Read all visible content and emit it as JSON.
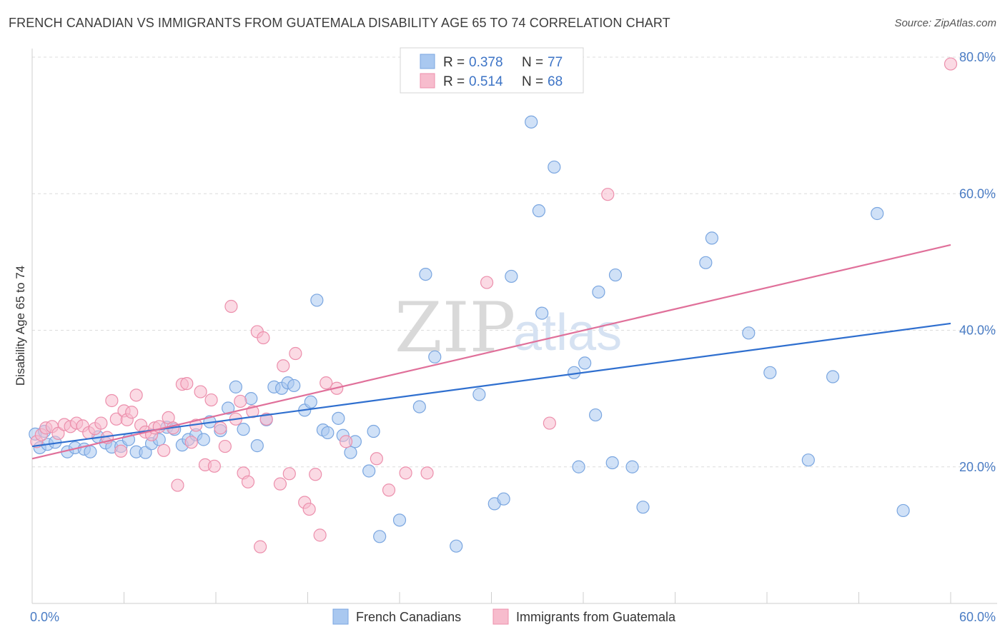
{
  "header": {
    "title": "FRENCH CANADIAN VS IMMIGRANTS FROM GUATEMALA DISABILITY AGE 65 TO 74 CORRELATION CHART",
    "source": "Source: ZipAtlas.com"
  },
  "watermark": {
    "zip": "ZIP",
    "atlas": "atlas"
  },
  "legend": {
    "r_label": "R =",
    "n_label": "N =",
    "rows": [
      {
        "r": "0.378",
        "n": "77",
        "color": "#a9c8f0"
      },
      {
        "r": "0.514",
        "n": "68",
        "color": "#f7bccd"
      }
    ]
  },
  "bottom_legend": [
    "French Canadians",
    "Immigrants from Guatemala"
  ],
  "chart_data": {
    "type": "scatter",
    "title": "FRENCH CANADIAN VS IMMIGRANTS FROM GUATEMALA DISABILITY AGE 65 TO 74 CORRELATION CHART",
    "xlabel": "",
    "ylabel": "Disability Age 65 to 74",
    "xlim": [
      0,
      60
    ],
    "ylim": [
      0,
      80
    ],
    "x_tick_labels": [
      "0.0%",
      "60.0%"
    ],
    "y_tick_labels": [
      "20.0%",
      "40.0%",
      "60.0%",
      "80.0%"
    ],
    "y_ticks": [
      20,
      40,
      60,
      80
    ],
    "grid": "horizontal dashed",
    "legend_position": "top-center",
    "series": [
      {
        "name": "French Canadians",
        "color": "#a9c8f0",
        "edge": "#7aa6e0",
        "line_color": "#2f6fcf",
        "trend": [
          [
            0,
            23.0
          ],
          [
            60,
            41.0
          ]
        ],
        "points": [
          [
            0.2,
            24.8
          ],
          [
            0.5,
            22.8
          ],
          [
            0.8,
            25.2
          ],
          [
            1.0,
            23.3
          ],
          [
            1.5,
            23.6
          ],
          [
            2.3,
            22.2
          ],
          [
            2.8,
            22.8
          ],
          [
            3.4,
            22.6
          ],
          [
            3.8,
            22.2
          ],
          [
            4.3,
            24.4
          ],
          [
            4.8,
            23.5
          ],
          [
            5.2,
            22.9
          ],
          [
            5.8,
            23.0
          ],
          [
            6.3,
            24.0
          ],
          [
            6.8,
            22.2
          ],
          [
            7.4,
            22.1
          ],
          [
            7.8,
            23.4
          ],
          [
            8.3,
            24.0
          ],
          [
            8.8,
            25.8
          ],
          [
            9.3,
            25.5
          ],
          [
            9.8,
            23.2
          ],
          [
            10.2,
            24.0
          ],
          [
            10.7,
            24.7
          ],
          [
            11.2,
            24.0
          ],
          [
            11.6,
            26.6
          ],
          [
            12.3,
            25.3
          ],
          [
            12.8,
            28.6
          ],
          [
            13.3,
            31.7
          ],
          [
            13.8,
            25.5
          ],
          [
            14.3,
            30.0
          ],
          [
            14.7,
            23.1
          ],
          [
            15.3,
            26.9
          ],
          [
            15.8,
            31.7
          ],
          [
            16.3,
            31.5
          ],
          [
            16.7,
            32.3
          ],
          [
            17.1,
            31.9
          ],
          [
            17.8,
            28.3
          ],
          [
            18.2,
            29.5
          ],
          [
            18.6,
            44.4
          ],
          [
            19.0,
            25.4
          ],
          [
            19.3,
            25.0
          ],
          [
            20.0,
            27.1
          ],
          [
            20.3,
            24.6
          ],
          [
            20.8,
            22.1
          ],
          [
            21.1,
            23.7
          ],
          [
            22.0,
            19.4
          ],
          [
            22.3,
            25.2
          ],
          [
            22.7,
            9.8
          ],
          [
            24.0,
            12.2
          ],
          [
            25.3,
            28.8
          ],
          [
            25.7,
            48.2
          ],
          [
            26.3,
            36.1
          ],
          [
            27.7,
            8.4
          ],
          [
            29.2,
            30.6
          ],
          [
            30.2,
            14.6
          ],
          [
            30.8,
            15.3
          ],
          [
            31.3,
            47.9
          ],
          [
            32.6,
            70.5
          ],
          [
            33.1,
            57.5
          ],
          [
            33.3,
            42.5
          ],
          [
            34.1,
            63.9
          ],
          [
            35.4,
            33.8
          ],
          [
            35.7,
            20.0
          ],
          [
            36.1,
            35.2
          ],
          [
            36.8,
            27.6
          ],
          [
            37.0,
            45.6
          ],
          [
            37.9,
            20.6
          ],
          [
            38.1,
            48.1
          ],
          [
            39.2,
            20.0
          ],
          [
            39.9,
            14.1
          ],
          [
            44.0,
            49.9
          ],
          [
            44.4,
            53.5
          ],
          [
            46.8,
            39.6
          ],
          [
            48.2,
            33.8
          ],
          [
            50.7,
            21.0
          ],
          [
            52.3,
            33.2
          ],
          [
            55.2,
            57.1
          ],
          [
            56.9,
            13.6
          ]
        ]
      },
      {
        "name": "Immigrants from Guatemala",
        "color": "#f7bccd",
        "edge": "#ec8fac",
        "line_color": "#e0709a",
        "trend": [
          [
            0,
            21.2
          ],
          [
            60,
            52.5
          ]
        ],
        "points": [
          [
            0.3,
            23.7
          ],
          [
            0.6,
            24.7
          ],
          [
            0.9,
            25.7
          ],
          [
            1.3,
            25.9
          ],
          [
            1.7,
            24.9
          ],
          [
            2.1,
            26.2
          ],
          [
            2.5,
            25.9
          ],
          [
            2.9,
            26.4
          ],
          [
            3.3,
            26.0
          ],
          [
            3.7,
            25.0
          ],
          [
            4.1,
            25.6
          ],
          [
            4.5,
            26.4
          ],
          [
            4.9,
            24.3
          ],
          [
            5.2,
            29.7
          ],
          [
            5.5,
            27.0
          ],
          [
            5.8,
            22.3
          ],
          [
            6.0,
            28.2
          ],
          [
            6.2,
            26.9
          ],
          [
            6.5,
            28.0
          ],
          [
            6.8,
            30.5
          ],
          [
            7.1,
            26.1
          ],
          [
            7.4,
            25.1
          ],
          [
            7.8,
            24.7
          ],
          [
            8.0,
            25.7
          ],
          [
            8.3,
            25.9
          ],
          [
            8.6,
            22.4
          ],
          [
            8.9,
            27.2
          ],
          [
            9.2,
            25.7
          ],
          [
            9.5,
            17.3
          ],
          [
            9.8,
            32.1
          ],
          [
            10.1,
            32.2
          ],
          [
            10.4,
            23.6
          ],
          [
            10.7,
            26.1
          ],
          [
            11.0,
            31.0
          ],
          [
            11.3,
            20.3
          ],
          [
            11.7,
            29.8
          ],
          [
            11.9,
            20.1
          ],
          [
            12.3,
            25.7
          ],
          [
            12.6,
            23.0
          ],
          [
            13.0,
            43.5
          ],
          [
            13.3,
            27.0
          ],
          [
            13.6,
            29.6
          ],
          [
            13.8,
            19.1
          ],
          [
            14.1,
            17.8
          ],
          [
            14.4,
            28.1
          ],
          [
            14.7,
            39.8
          ],
          [
            14.9,
            8.3
          ],
          [
            15.1,
            38.9
          ],
          [
            15.3,
            27.0
          ],
          [
            16.2,
            17.5
          ],
          [
            16.4,
            34.8
          ],
          [
            16.8,
            19.0
          ],
          [
            17.2,
            36.6
          ],
          [
            17.8,
            14.8
          ],
          [
            18.1,
            13.8
          ],
          [
            18.5,
            18.9
          ],
          [
            18.8,
            10.0
          ],
          [
            19.2,
            32.3
          ],
          [
            19.9,
            31.5
          ],
          [
            20.5,
            23.7
          ],
          [
            22.5,
            21.2
          ],
          [
            23.3,
            16.6
          ],
          [
            24.4,
            19.1
          ],
          [
            25.8,
            19.1
          ],
          [
            29.7,
            47.0
          ],
          [
            33.8,
            26.4
          ],
          [
            37.6,
            59.9
          ],
          [
            60.0,
            79.0
          ]
        ]
      }
    ]
  }
}
